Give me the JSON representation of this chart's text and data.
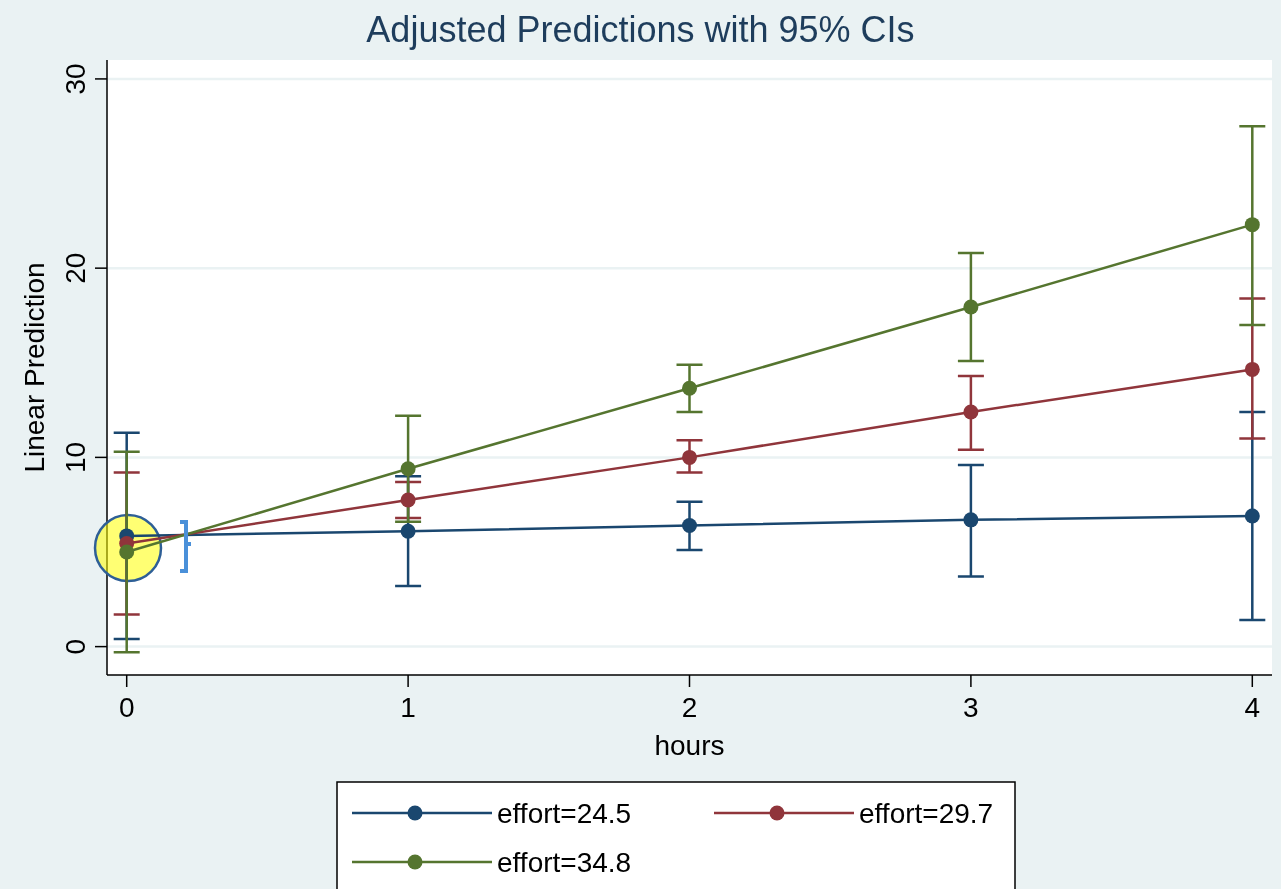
{
  "chart_data": {
    "type": "line",
    "title": "Adjusted Predictions with 95% CIs",
    "xlabel": "hours",
    "ylabel": "Linear Prediction",
    "x": [
      0,
      1,
      2,
      3,
      4
    ],
    "series": [
      {
        "name": "effort=24.5",
        "color": "#1a476f",
        "values": [
          5.85,
          6.1,
          6.4,
          6.7,
          6.9
        ],
        "errors": [
          [
            0.4,
            11.3
          ],
          [
            3.2,
            9.0
          ],
          [
            5.1,
            7.65
          ],
          [
            3.7,
            9.6
          ],
          [
            1.4,
            12.4
          ]
        ]
      },
      {
        "name": "effort=29.7",
        "color": "#90353b",
        "values": [
          5.45,
          7.75,
          10.0,
          12.4,
          14.65
        ],
        "errors": [
          [
            1.7,
            9.2
          ],
          [
            6.8,
            8.7
          ],
          [
            9.2,
            10.9
          ],
          [
            10.4,
            14.3
          ],
          [
            11.0,
            18.4
          ]
        ]
      },
      {
        "name": "effort=34.8",
        "color": "#55752f",
        "values": [
          5.0,
          9.4,
          13.65,
          17.95,
          22.3
        ],
        "errors": [
          [
            -0.3,
            10.3
          ],
          [
            6.6,
            12.2
          ],
          [
            12.4,
            14.9
          ],
          [
            15.1,
            20.8
          ],
          [
            17.0,
            27.5
          ]
        ]
      }
    ],
    "xlim": [
      -0.07,
      4.07
    ],
    "ylim": [
      -1.5,
      31
    ],
    "xticks": [
      0,
      1,
      2,
      3,
      4
    ],
    "yticks": [
      0,
      10,
      20,
      30
    ],
    "grid": "y",
    "legend": "bottom",
    "marker": "circle",
    "line_style": "solid"
  }
}
